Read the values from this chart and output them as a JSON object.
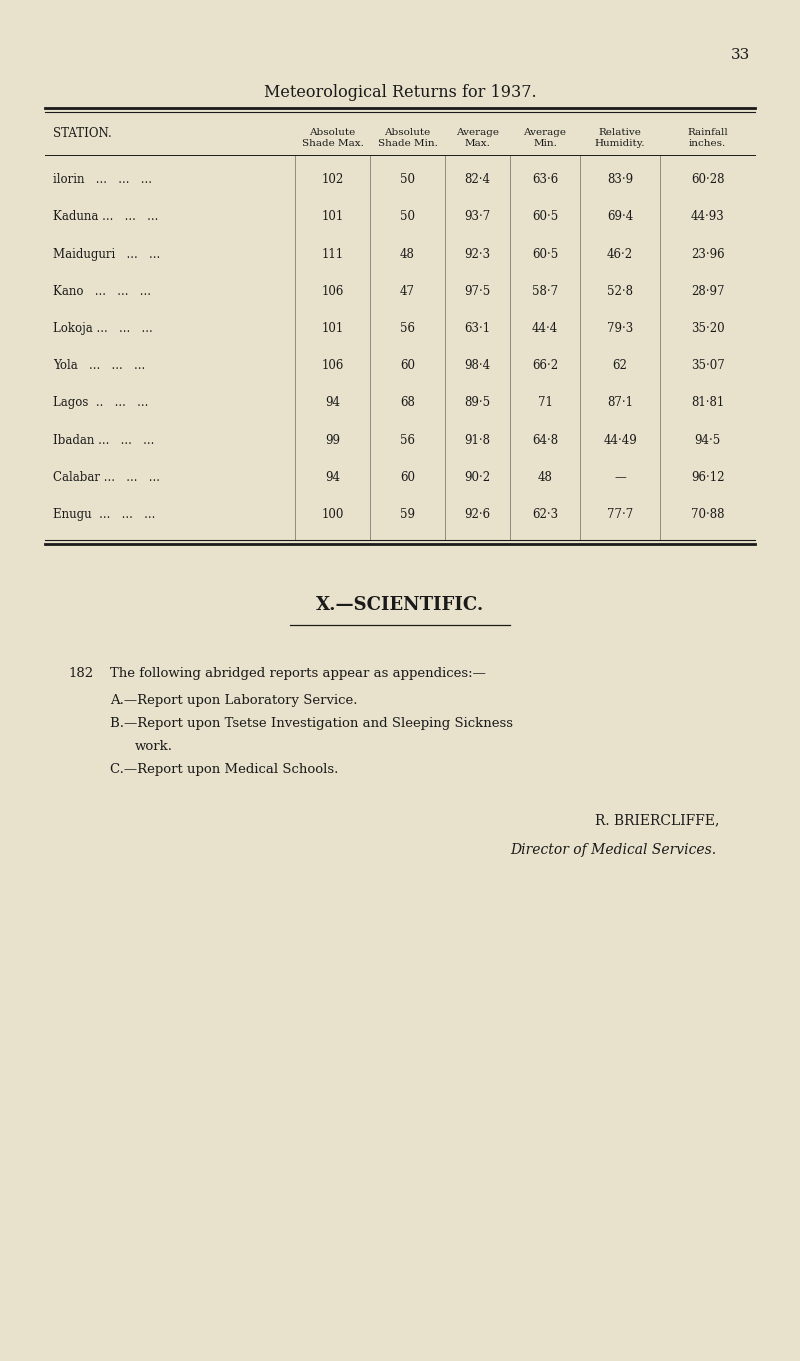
{
  "page_number": "33",
  "title": "Meteorological Returns for 1937.",
  "bg_color": "#e8e2cc",
  "text_color": "#1a1a1a",
  "col_headers": [
    "STATION.",
    "Absolute\nShade Max.",
    "Absolute\nShade Min.",
    "Average\nMax.",
    "Average\nMin.",
    "Relative\nHumidity.",
    "Rainfall\ninches."
  ],
  "rows": [
    [
      "ilorin   ...   ...   ...",
      "102",
      "50",
      "82·4",
      "63·6",
      "83·9",
      "60·28"
    ],
    [
      "Kaduna ...   ...   ...",
      "101",
      "50",
      "93·7",
      "60·5",
      "69·4",
      "44·93"
    ],
    [
      "Maiduguri   ...   ...",
      "111",
      "48",
      "92·3",
      "60·5",
      "46·2",
      "23·96"
    ],
    [
      "Kano   ...   ...   ...",
      "106",
      "47",
      "97·5",
      "58·7",
      "52·8",
      "28·97"
    ],
    [
      "Lokoja ...   ...   ...",
      "101",
      "56",
      "63·1",
      "44·4",
      "79·3",
      "35·20"
    ],
    [
      "Yola   ...   ...   ...",
      "106",
      "60",
      "98·4",
      "66·2",
      "62",
      "35·07"
    ],
    [
      "Lagos  ..   ...   ...",
      "94",
      "68",
      "89·5",
      "71",
      "87·1",
      "81·81"
    ],
    [
      "Ibadan ...   ...   ...",
      "99",
      "56",
      "91·8",
      "64·8",
      "44·49",
      "94·5"
    ],
    [
      "Calabar ...   ...   ...",
      "94",
      "60",
      "90·2",
      "48",
      "—",
      "96·12"
    ],
    [
      "Enugu  ...   ...   ...",
      "100",
      "59",
      "92·6",
      "62·3",
      "77·7",
      "70·88"
    ]
  ],
  "section_heading": "X.—SCIENTIFIC.",
  "para_num": "182",
  "para_text": "The following abridged reports appear as appendices:—",
  "list_items": [
    [
      "A.—Report upon Laboratory Service.",
      false
    ],
    [
      "B.—Report upon Tsetse Investigation and Sleeping Sickness",
      false
    ],
    [
      "work.",
      true
    ],
    [
      "C.—Report upon Medical Schools.",
      false
    ]
  ],
  "signature_name": "R. BRIERCLIFFE,",
  "signature_title": "Director of Medical Services."
}
